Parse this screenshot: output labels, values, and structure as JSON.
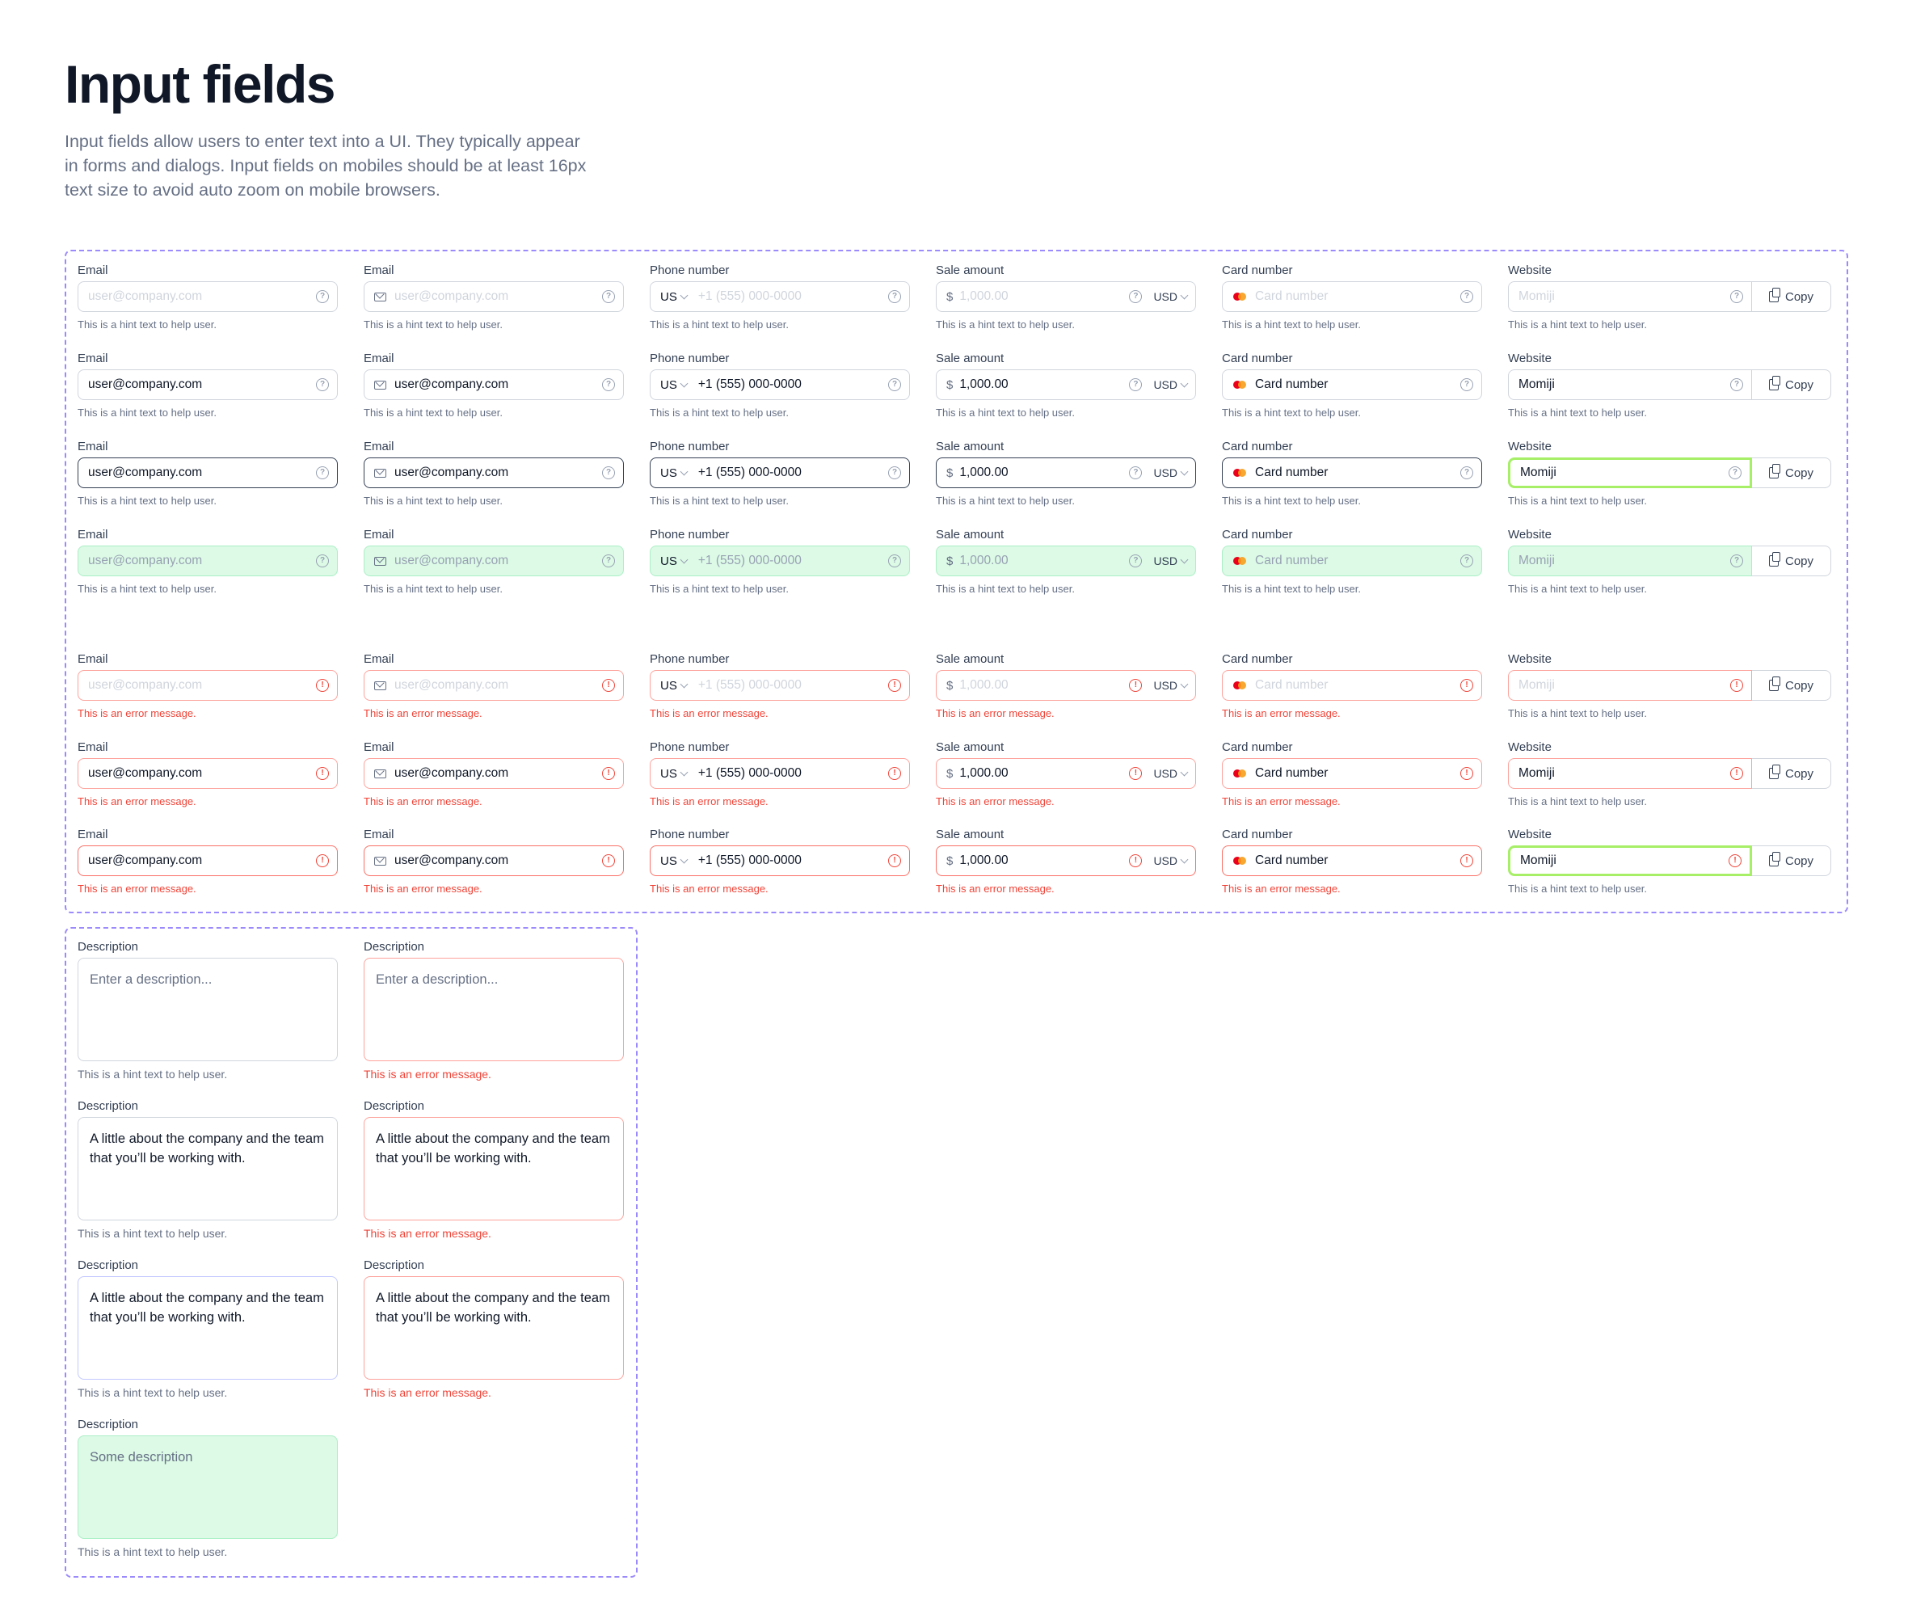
{
  "header": {
    "title": "Input fields",
    "description": "Input fields allow users to enter text into a UI. They typically appear in forms and dialogs. Input fields on mobiles should be at least 16px text size to avoid auto zoom on mobile browsers."
  },
  "labels": {
    "email": "Email",
    "phone": "Phone number",
    "sale": "Sale amount",
    "card": "Card number",
    "website": "Website",
    "description": "Description"
  },
  "values": {
    "email": "user@company.com",
    "phone": "+1 (555) 000-0000",
    "sale": "1,000.00",
    "card": "Card number",
    "website": "Momiji",
    "description_filled": "A little about the company and the team that you’ll be working with.",
    "description_disabled": "Some description"
  },
  "placeholders": {
    "email": "user@company.com",
    "phone": "+1 (555) 000-0000",
    "sale": "1,000.00",
    "card": "Card number",
    "website": "Momiji",
    "description": "Enter a description..."
  },
  "messages": {
    "hint": "This is a hint text to help user.",
    "error": "This is an error message."
  },
  "addons": {
    "country": "US",
    "currency_symbol": "$",
    "currency": "USD",
    "copy": "Copy"
  },
  "colors": {
    "frame_border": "#9b8afb",
    "error": "#f04438",
    "disabled_bg": "#dcfae6",
    "focus_green": "#a6ef67"
  }
}
